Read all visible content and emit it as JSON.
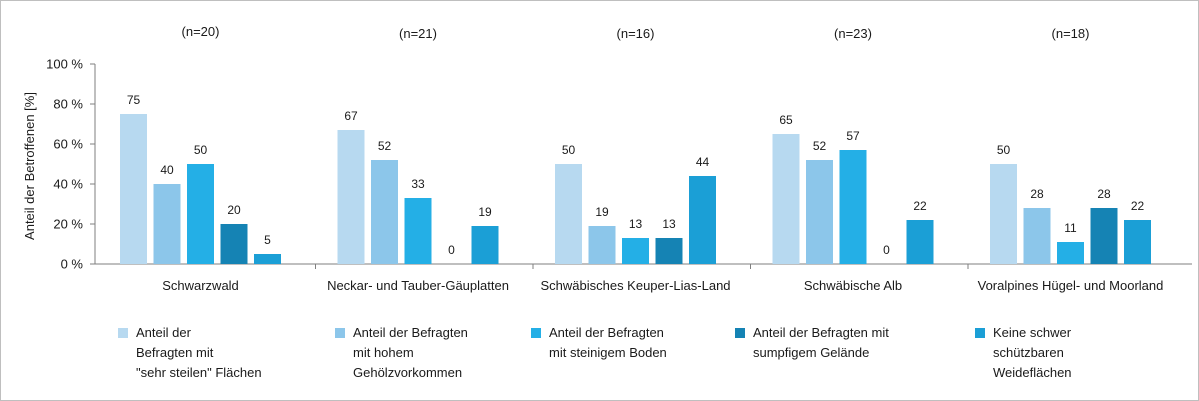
{
  "chart_data": {
    "type": "bar",
    "ylabel": "Anteil der Betroffenen [%]",
    "ylim": [
      0,
      100
    ],
    "yticks": [
      "0 %",
      "20 %",
      "40 %",
      "60 %",
      "80 %",
      "100 %"
    ],
    "grid": false,
    "legend_position": "bottom",
    "categories": [
      "Schwarzwald",
      "Neckar- und Tauber-Gäuplatten",
      "Schwäbisches Keuper-Lias-Land",
      "Schwäbische Alb",
      "Voralpines Hügel- und Moorland"
    ],
    "group_counts": [
      "(n=20)",
      "(n=21)",
      "(n=16)",
      "(n=23)",
      "(n=18)"
    ],
    "series": [
      {
        "name": "Anteil der\nBefragten mit\n\"sehr steilen\" Flächen",
        "color": "#b7d9f0",
        "values": [
          75,
          67,
          50,
          65,
          50
        ]
      },
      {
        "name": "Anteil der Befragten\nmit hohem\nGehölzvorkommen",
        "color": "#8cc6ea",
        "values": [
          40,
          52,
          19,
          52,
          28
        ]
      },
      {
        "name": "Anteil der Befragten\nmit steinigem Boden",
        "color": "#24afe6",
        "values": [
          50,
          33,
          13,
          57,
          11
        ]
      },
      {
        "name": "Anteil der Befragten mit\nsumpfigem Gelände",
        "color": "#1583b4",
        "values": [
          20,
          0,
          13,
          0,
          28
        ]
      },
      {
        "name": "Keine schwer\nschützbaren\nWeideflächen",
        "color": "#1b9fd6",
        "values": [
          5,
          19,
          44,
          22,
          22
        ]
      }
    ]
  }
}
